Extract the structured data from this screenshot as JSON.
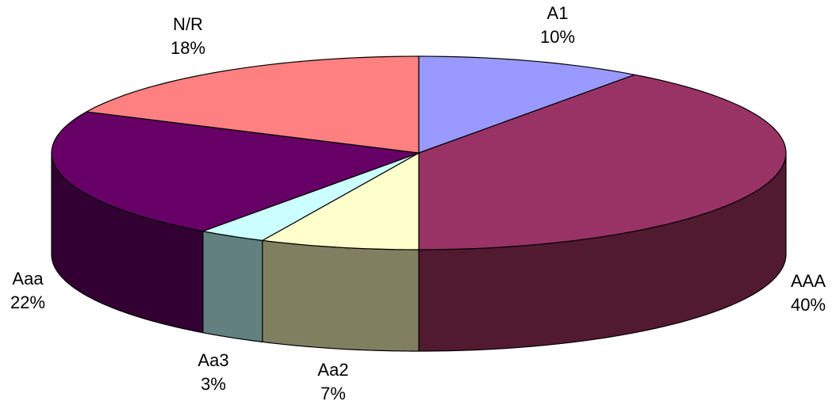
{
  "chart_data": {
    "type": "pie",
    "style": "3d",
    "title": "",
    "slices": [
      {
        "label": "A1",
        "pct_text": "10%",
        "value": 10,
        "color": "#9999ff",
        "side": "#5c5c99"
      },
      {
        "label": "AAA",
        "pct_text": "40%",
        "value": 40,
        "color": "#993366",
        "side": "#521a30"
      },
      {
        "label": "Aa2",
        "pct_text": "7%",
        "value": 7,
        "color": "#ffffcc",
        "side": "#808060"
      },
      {
        "label": "Aa3",
        "pct_text": "3%",
        "value": 3,
        "color": "#ccffff",
        "side": "#628080"
      },
      {
        "label": "Aaa",
        "pct_text": "22%",
        "value": 22,
        "color": "#660066",
        "side": "#330033"
      },
      {
        "label": "N/R",
        "pct_text": "18%",
        "value": 18,
        "color": "#ff8080",
        "side": "#a05050"
      }
    ]
  }
}
